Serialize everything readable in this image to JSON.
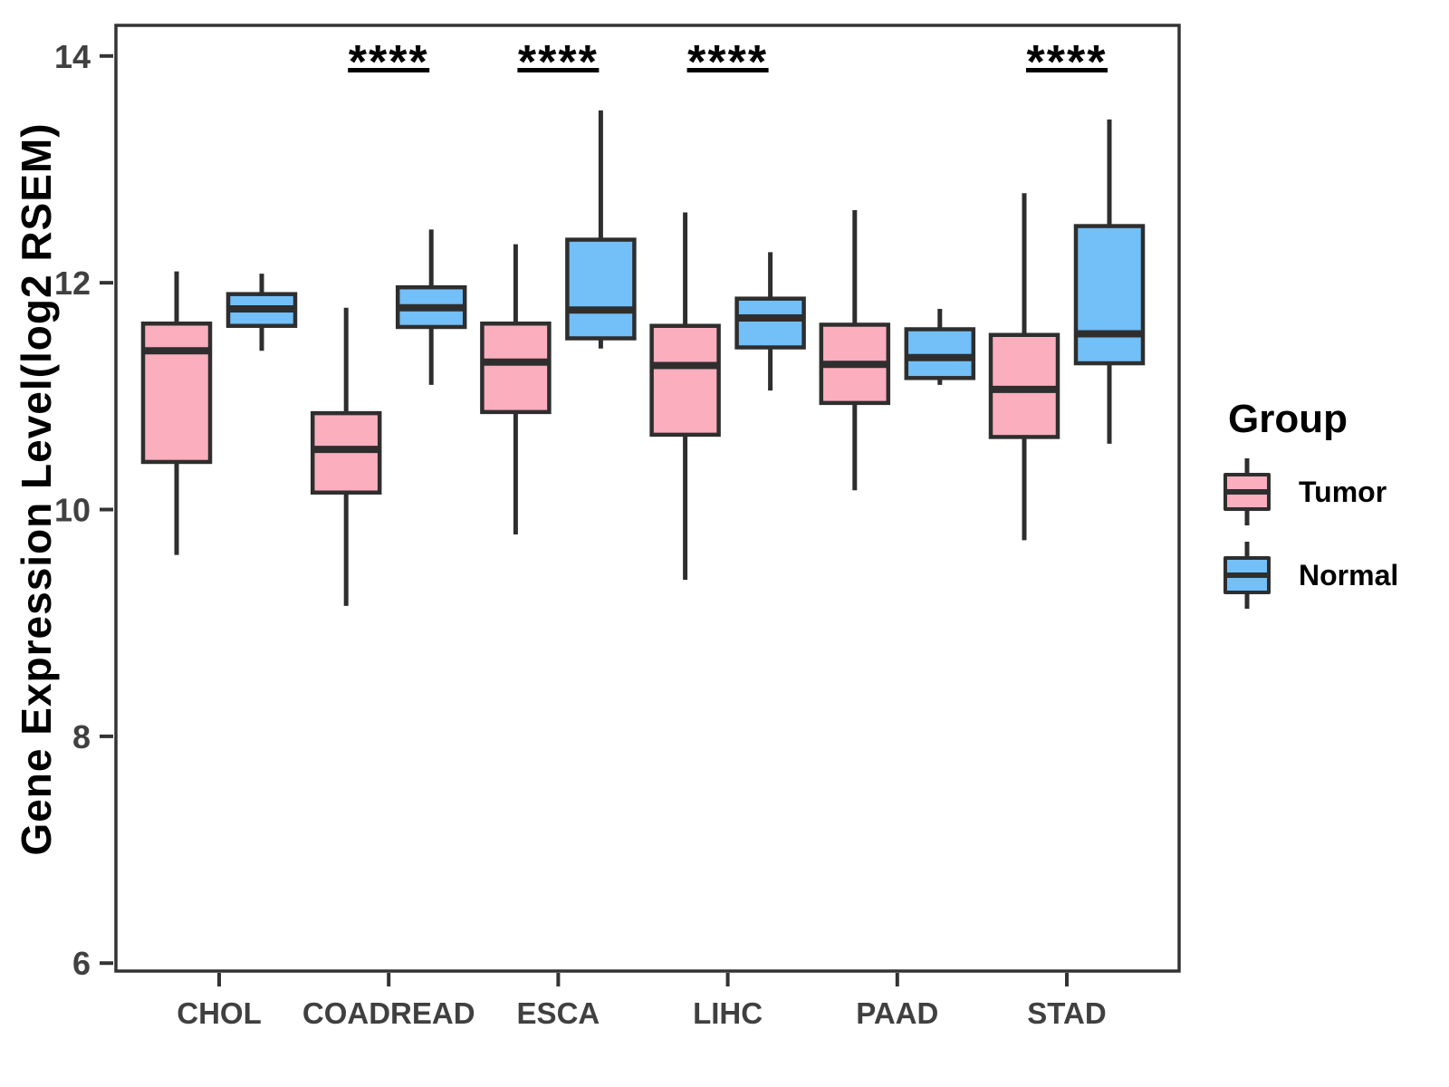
{
  "figure": {
    "background": "#ffffff"
  },
  "colors": {
    "tumor_fill": "#FBAEBE",
    "normal_fill": "#73BFF7",
    "box_stroke": "#2E2E2E",
    "panel_border": "#333333",
    "axis_text": "#404040",
    "significance": "#000000"
  },
  "y_axis": {
    "title": "Gene Expression Level(log2 RSEM)",
    "tick_labels": [
      "14",
      "12",
      "10",
      "8",
      "6"
    ],
    "tick_values": [
      14,
      12,
      10,
      8,
      6
    ]
  },
  "x_axis": {
    "categories": [
      "CHOL",
      "COADREAD",
      "ESCA",
      "LIHC",
      "PAAD",
      "STAD"
    ]
  },
  "legend": {
    "title": "Group",
    "items": [
      {
        "label": "Tumor",
        "color": "#FBAEBE"
      },
      {
        "label": "Normal",
        "color": "#73BFF7"
      }
    ]
  },
  "chart_data": {
    "type": "boxplot",
    "title": "",
    "xlabel": "",
    "ylabel": "Gene Expression Level(log2 RSEM)",
    "ylim": [
      5.93,
      14.27
    ],
    "yticks": [
      6,
      8,
      10,
      12,
      14
    ],
    "grid": false,
    "legend_position": "right",
    "categories": [
      "CHOL",
      "COADREAD",
      "ESCA",
      "LIHC",
      "PAAD",
      "STAD"
    ],
    "series": [
      {
        "name": "Tumor",
        "color": "#FBAEBE",
        "boxes": [
          {
            "category": "CHOL",
            "whisker_low": 9.6,
            "q1": 10.42,
            "median": 11.4,
            "q3": 11.64,
            "whisker_high": 12.1
          },
          {
            "category": "COADREAD",
            "whisker_low": 9.15,
            "q1": 10.15,
            "median": 10.53,
            "q3": 10.85,
            "whisker_high": 11.78
          },
          {
            "category": "ESCA",
            "whisker_low": 9.78,
            "q1": 10.86,
            "median": 11.3,
            "q3": 11.64,
            "whisker_high": 12.34
          },
          {
            "category": "LIHC",
            "whisker_low": 9.38,
            "q1": 10.66,
            "median": 11.27,
            "q3": 11.62,
            "whisker_high": 12.62
          },
          {
            "category": "PAAD",
            "whisker_low": 10.17,
            "q1": 10.94,
            "median": 11.28,
            "q3": 11.63,
            "whisker_high": 12.64
          },
          {
            "category": "STAD",
            "whisker_low": 9.73,
            "q1": 10.64,
            "median": 11.06,
            "q3": 11.54,
            "whisker_high": 12.79
          }
        ]
      },
      {
        "name": "Normal",
        "color": "#73BFF7",
        "boxes": [
          {
            "category": "CHOL",
            "whisker_low": 11.4,
            "q1": 11.62,
            "median": 11.77,
            "q3": 11.9,
            "whisker_high": 12.08
          },
          {
            "category": "COADREAD",
            "whisker_low": 11.1,
            "q1": 11.61,
            "median": 11.78,
            "q3": 11.96,
            "whisker_high": 12.47
          },
          {
            "category": "ESCA",
            "whisker_low": 11.42,
            "q1": 11.51,
            "median": 11.76,
            "q3": 12.38,
            "whisker_high": 13.52
          },
          {
            "category": "LIHC",
            "whisker_low": 11.05,
            "q1": 11.43,
            "median": 11.69,
            "q3": 11.86,
            "whisker_high": 12.27
          },
          {
            "category": "PAAD",
            "whisker_low": 11.1,
            "q1": 11.16,
            "median": 11.34,
            "q3": 11.59,
            "whisker_high": 11.77
          },
          {
            "category": "STAD",
            "whisker_low": 10.58,
            "q1": 11.29,
            "median": 11.55,
            "q3": 12.5,
            "whisker_high": 13.44
          }
        ]
      }
    ],
    "significance": {
      "label": "****",
      "groups": [
        "COADREAD",
        "ESCA",
        "LIHC",
        "STAD"
      ]
    }
  }
}
